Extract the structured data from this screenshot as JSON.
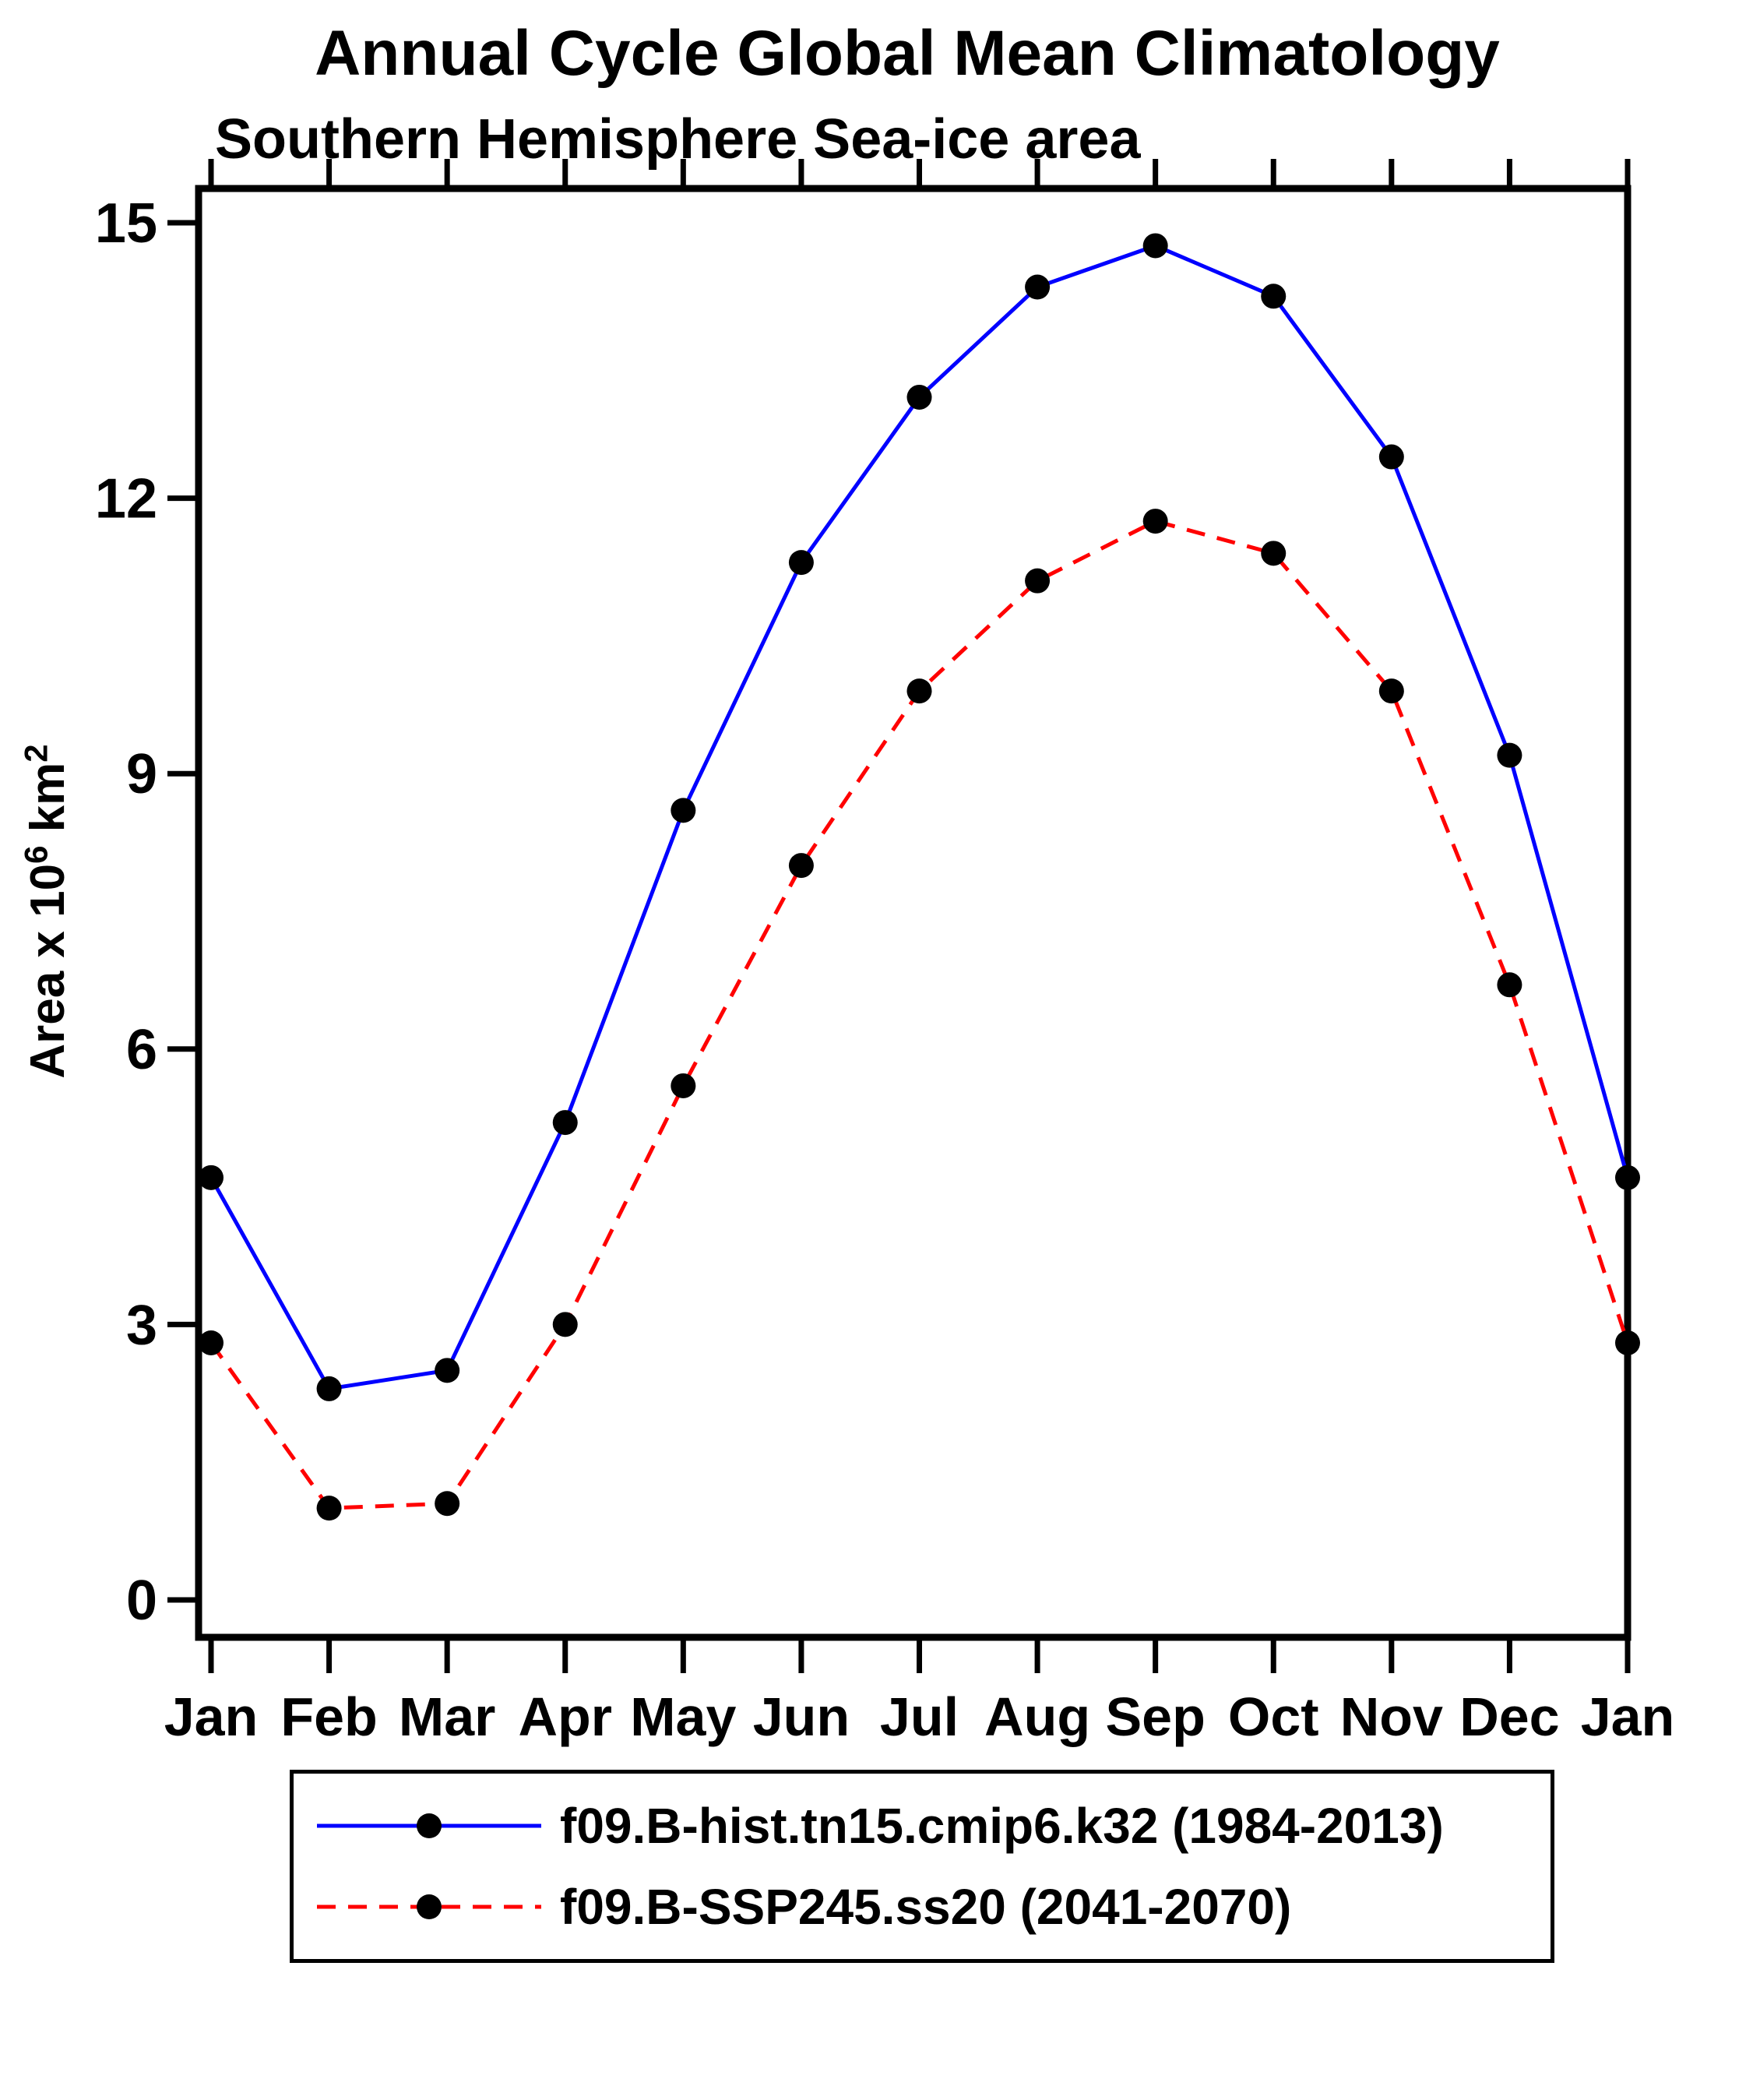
{
  "chart_data": {
    "type": "line",
    "title": "Annual Cycle Global Mean Climatology",
    "subtitle": "Southern Hemisphere Sea-ice area",
    "xlabel": "",
    "ylabel": "Area x 10^6 km^2",
    "ylabel_parts": {
      "prefix": "Area x 10",
      "sup1": "6",
      "mid": " km",
      "sup2": "2"
    },
    "categories": [
      "Jan",
      "Feb",
      "Mar",
      "Apr",
      "May",
      "Jun",
      "Jul",
      "Aug",
      "Sep",
      "Oct",
      "Nov",
      "Dec",
      "Jan"
    ],
    "ylim": [
      0,
      15
    ],
    "yticks": [
      0,
      3,
      6,
      9,
      12,
      15
    ],
    "grid": false,
    "legend_position": "bottom-box",
    "marker": {
      "shape": "circle",
      "color": "#000000"
    },
    "series": [
      {
        "name": "f09.B-hist.tn15.cmip6.k32 (1984-2013)",
        "color": "#0000ff",
        "style": "solid",
        "values": [
          4.6,
          2.3,
          2.5,
          5.2,
          8.6,
          11.3,
          13.1,
          14.3,
          14.75,
          14.2,
          12.45,
          9.2,
          4.6
        ]
      },
      {
        "name": "f09.B-SSP245.ss20 (2041-2070)",
        "color": "#ff0000",
        "style": "dashed",
        "values": [
          2.8,
          1.0,
          1.05,
          3.0,
          5.6,
          8.0,
          9.9,
          11.1,
          11.75,
          11.4,
          9.9,
          6.7,
          2.8
        ]
      }
    ]
  }
}
